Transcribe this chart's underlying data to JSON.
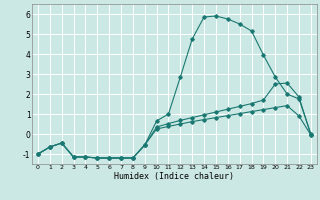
{
  "xlabel": "Humidex (Indice chaleur)",
  "bg_color": "#cce8e4",
  "grid_color": "#ffffff",
  "line_color": "#1a7872",
  "xlim": [
    -0.5,
    23.5
  ],
  "ylim": [
    -1.5,
    6.5
  ],
  "xticks": [
    0,
    1,
    2,
    3,
    4,
    5,
    6,
    7,
    8,
    9,
    10,
    11,
    12,
    13,
    14,
    15,
    16,
    17,
    18,
    19,
    20,
    21,
    22,
    23
  ],
  "yticks": [
    -1,
    0,
    1,
    2,
    3,
    4,
    5,
    6
  ],
  "series1_x": [
    0,
    1,
    2,
    3,
    4,
    5,
    6,
    7,
    8,
    9,
    10,
    11,
    12,
    13,
    14,
    15,
    16,
    17,
    18,
    19,
    20,
    21,
    22,
    23
  ],
  "series1_y": [
    -1.0,
    -0.65,
    -0.45,
    -1.15,
    -1.15,
    -1.2,
    -1.2,
    -1.2,
    -1.2,
    -0.55,
    0.65,
    1.0,
    2.85,
    4.75,
    5.85,
    5.9,
    5.75,
    5.5,
    5.15,
    3.95,
    2.85,
    2.0,
    1.75,
    0.0
  ],
  "series2_x": [
    0,
    1,
    2,
    3,
    4,
    5,
    6,
    7,
    8,
    9,
    10,
    11,
    12,
    13,
    14,
    15,
    16,
    17,
    18,
    19,
    20,
    21,
    22,
    23
  ],
  "series2_y": [
    -1.0,
    -0.65,
    -0.45,
    -1.15,
    -1.15,
    -1.2,
    -1.2,
    -1.2,
    -1.2,
    -0.55,
    0.35,
    0.52,
    0.68,
    0.82,
    0.96,
    1.1,
    1.24,
    1.38,
    1.52,
    1.7,
    2.5,
    2.55,
    1.85,
    -0.05
  ],
  "series3_x": [
    0,
    1,
    2,
    3,
    4,
    5,
    6,
    7,
    8,
    9,
    10,
    11,
    12,
    13,
    14,
    15,
    16,
    17,
    18,
    19,
    20,
    21,
    22,
    23
  ],
  "series3_y": [
    -1.0,
    -0.65,
    -0.45,
    -1.15,
    -1.15,
    -1.2,
    -1.2,
    -1.2,
    -1.2,
    -0.55,
    0.25,
    0.38,
    0.5,
    0.62,
    0.72,
    0.82,
    0.92,
    1.02,
    1.12,
    1.22,
    1.32,
    1.42,
    0.9,
    -0.05
  ]
}
